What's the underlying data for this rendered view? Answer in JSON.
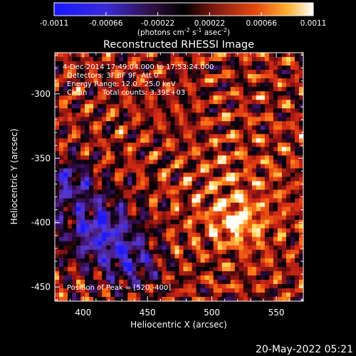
{
  "colorbar": {
    "ticks": [
      "-0.0011",
      "-0.00066",
      "-0.00022",
      "0.00022",
      "0.00066",
      "0.0011"
    ],
    "units_main": "(photons cm",
    "units_exp1": "-2",
    "units_mid": " s",
    "units_exp2": "-1",
    "units_end": " asec",
    "units_exp3": "-2",
    "units_close": ")"
  },
  "plot": {
    "title": "Reconstructed RHESSI Image",
    "xlabel": "Heliocentric X (arcsec)",
    "ylabel": "Heliocentric Y (arcsec)",
    "x_ticks": [
      "400",
      "450",
      "500",
      "550"
    ],
    "y_ticks": [
      "-300",
      "-350",
      "-400",
      "-450"
    ],
    "x_tick_values": [
      400,
      450,
      500,
      550
    ],
    "y_tick_values": [
      -300,
      -350,
      -400,
      -450
    ],
    "xlim": [
      378,
      571
    ],
    "ylim": [
      -461,
      -268
    ]
  },
  "annotations": {
    "time_range": "4-Dec-2014 17:49:04.000 to 17:53:24.000",
    "detectors": "Detectors: 3F 8F 9F, Att 0",
    "energy": "Energy Range: 12.0 - 25.0 keV",
    "method": "Clean",
    "counts": "Total counts: 3.39E+03",
    "peak": "Position of Peak = [520,-400]"
  },
  "peak": {
    "x": 520,
    "y": -400
  },
  "footer": {
    "timestamp": "20-May-2022 05:21"
  },
  "colors": {
    "background": "#000000",
    "text": "#ffffff",
    "colormap": [
      "#1a18ff",
      "#5a20c8",
      "#3a1050",
      "#000000",
      "#7a1a10",
      "#d83a10",
      "#ff8a18",
      "#ffe070",
      "#ffffff"
    ]
  }
}
